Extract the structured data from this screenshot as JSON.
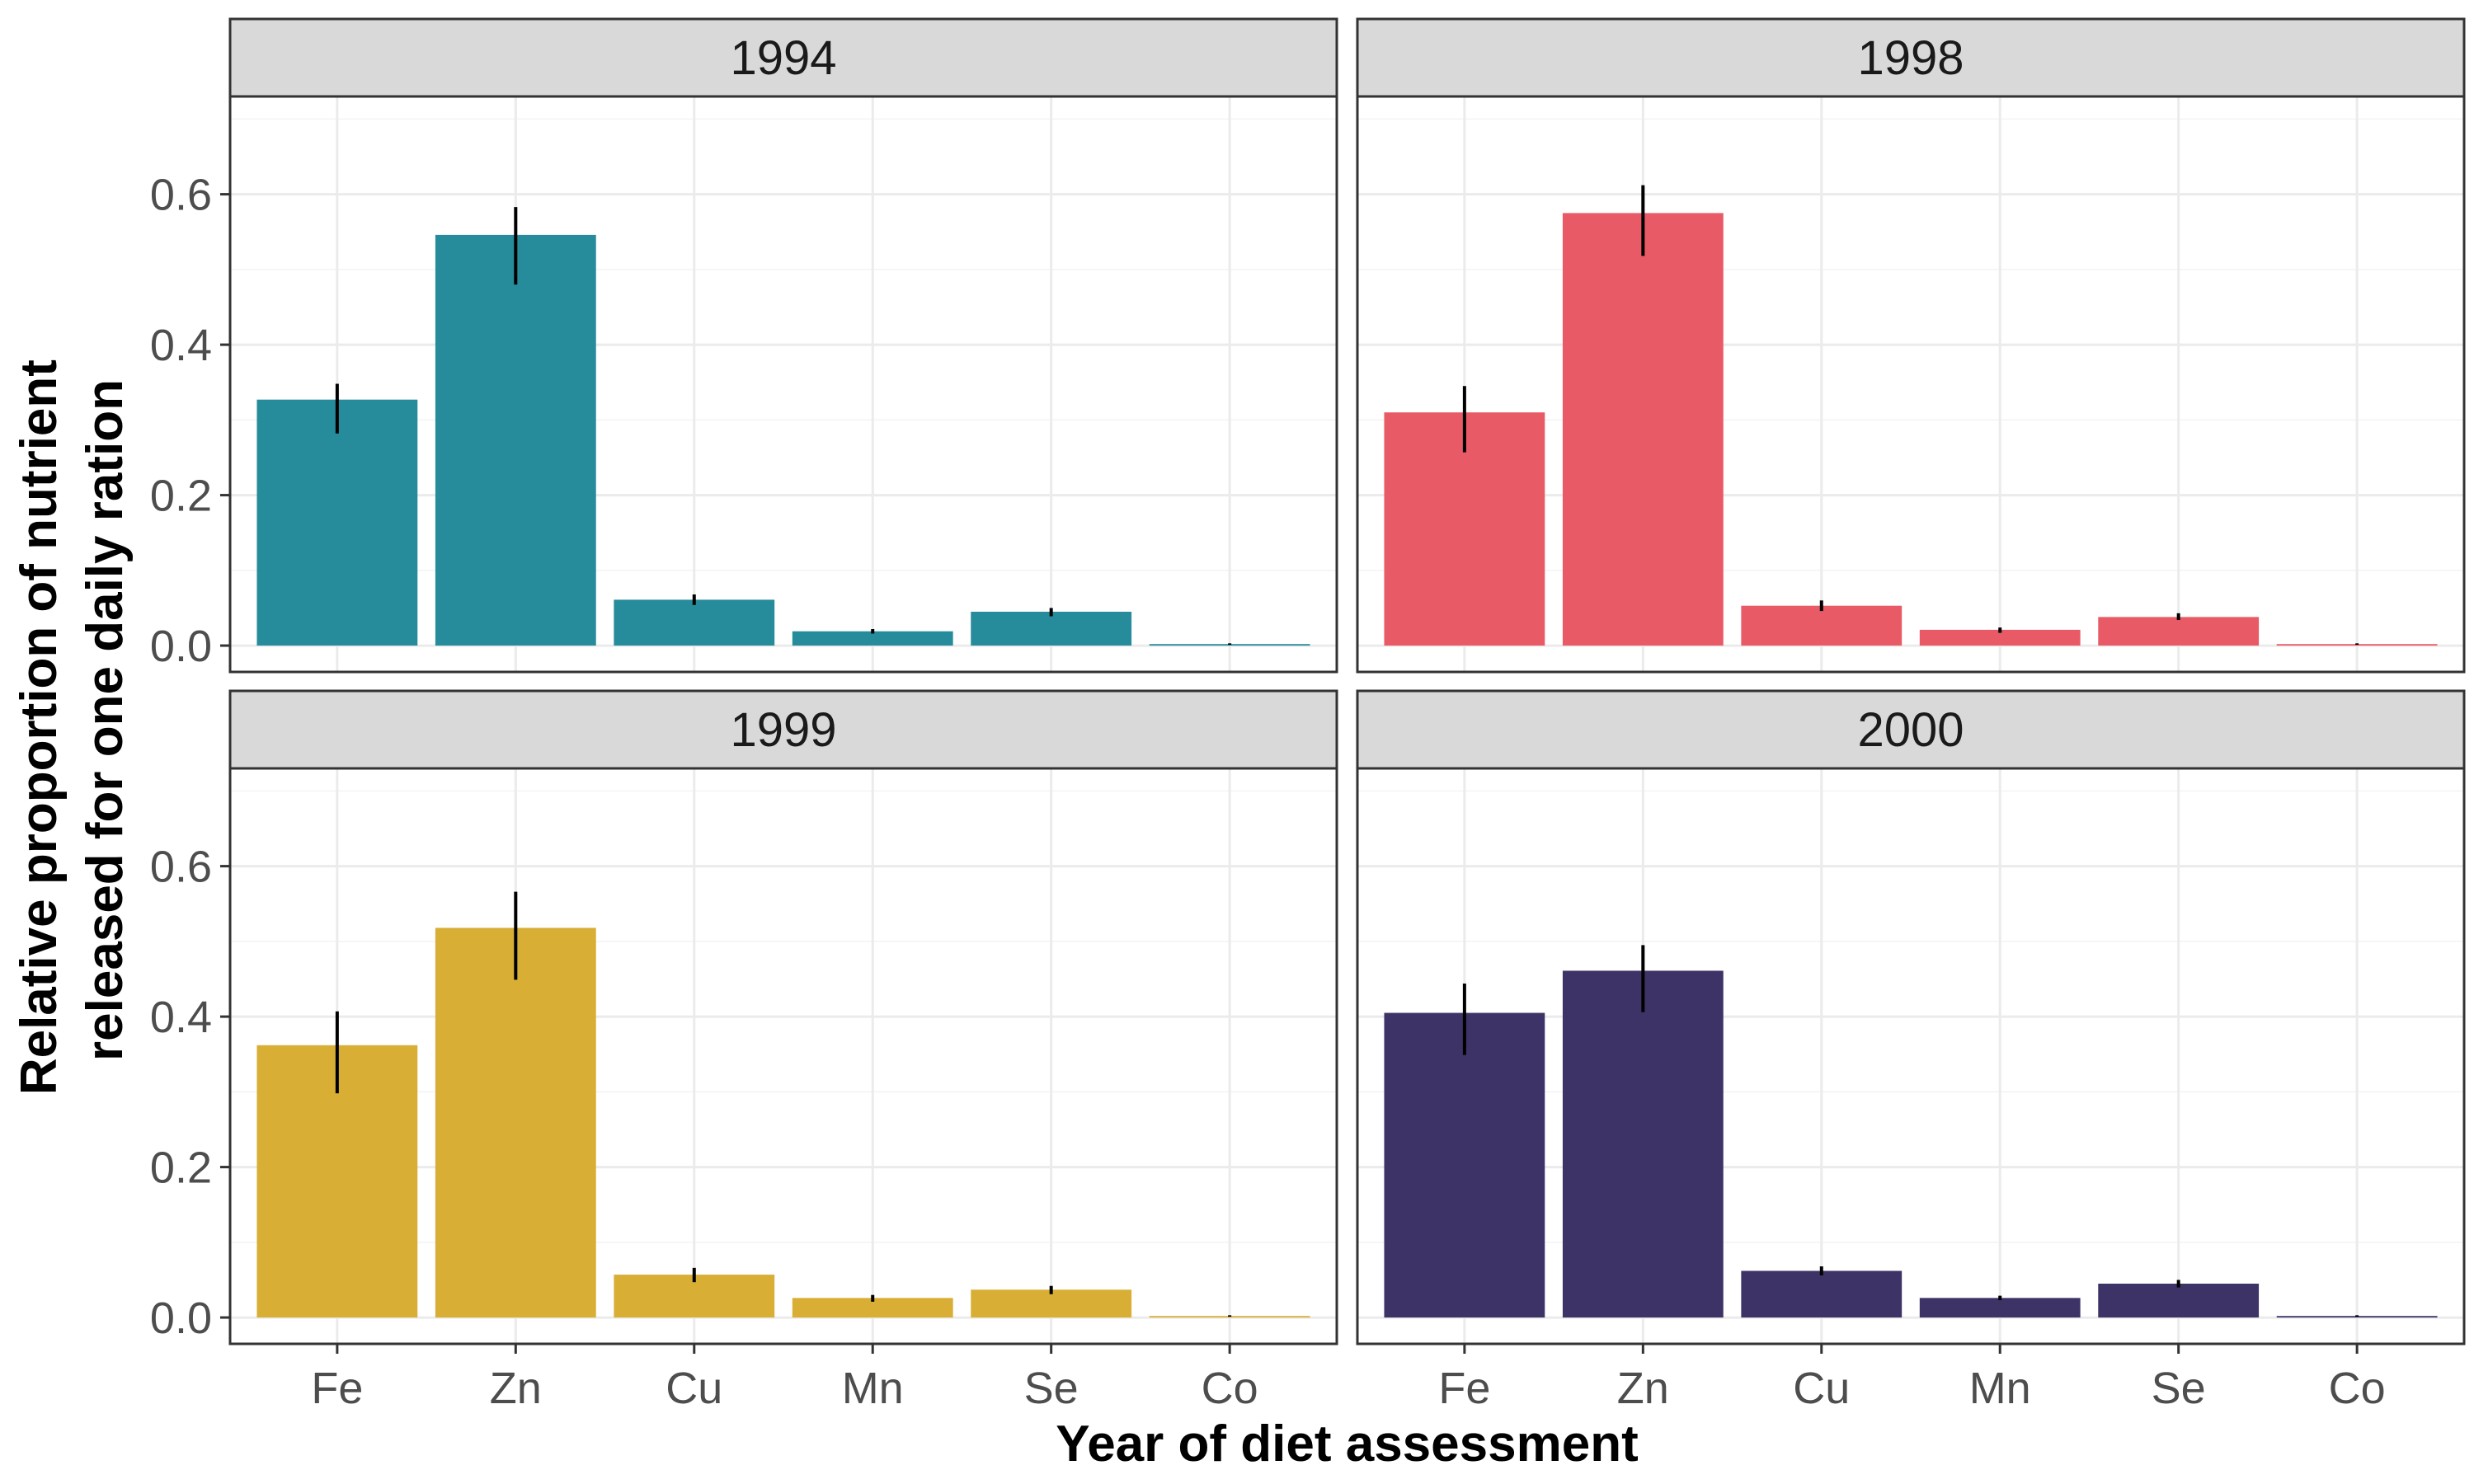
{
  "chart_data": {
    "type": "bar",
    "xlabel": "Year of diet assessment",
    "ylabel_lines": [
      "Relative proportion of nutrient",
      "released for one daily ration"
    ],
    "categories": [
      "Fe",
      "Zn",
      "Cu",
      "Mn",
      "Se",
      "Co"
    ],
    "ylim": [
      -0.035,
      0.73
    ],
    "yticks": [
      0.0,
      0.2,
      0.4,
      0.6
    ],
    "ytick_labels": [
      "0.0",
      "0.2",
      "0.4",
      "0.6"
    ],
    "grid": true,
    "legend": "none",
    "panels": [
      {
        "title": "1994",
        "color": "#268b9a",
        "values": [
          0.327,
          0.546,
          0.061,
          0.019,
          0.045,
          0.002
        ],
        "error_low": [
          0.282,
          0.48,
          0.054,
          0.016,
          0.039,
          0.001
        ],
        "error_high": [
          0.348,
          0.583,
          0.068,
          0.022,
          0.05,
          0.003
        ]
      },
      {
        "title": "1998",
        "color": "#e85a65",
        "values": [
          0.31,
          0.575,
          0.053,
          0.021,
          0.038,
          0.002
        ],
        "error_low": [
          0.257,
          0.518,
          0.046,
          0.017,
          0.034,
          0.001
        ],
        "error_high": [
          0.345,
          0.612,
          0.06,
          0.024,
          0.043,
          0.003
        ]
      },
      {
        "title": "1999",
        "color": "#d8ae35",
        "values": [
          0.362,
          0.518,
          0.057,
          0.026,
          0.037,
          0.002
        ],
        "error_low": [
          0.298,
          0.449,
          0.047,
          0.021,
          0.031,
          0.001
        ],
        "error_high": [
          0.407,
          0.566,
          0.066,
          0.03,
          0.042,
          0.003
        ]
      },
      {
        "title": "2000",
        "color": "#3e3366",
        "values": [
          0.405,
          0.461,
          0.062,
          0.026,
          0.045,
          0.002
        ],
        "error_low": [
          0.349,
          0.406,
          0.056,
          0.023,
          0.04,
          0.001
        ],
        "error_high": [
          0.444,
          0.495,
          0.068,
          0.029,
          0.05,
          0.003
        ]
      }
    ]
  }
}
